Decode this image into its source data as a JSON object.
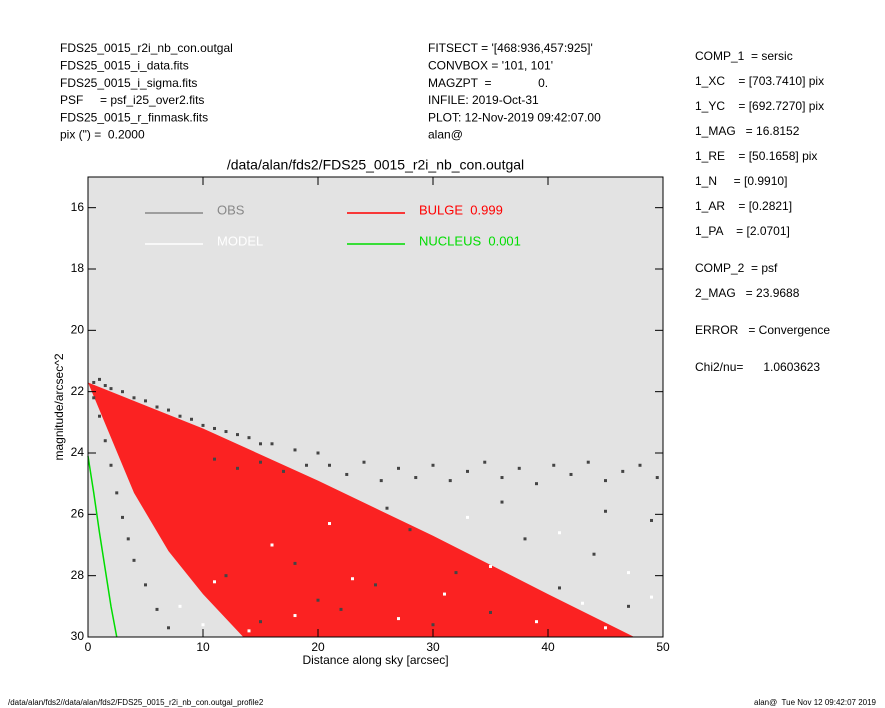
{
  "header": {
    "left": [
      "FDS25_0015_r2i_nb_con.outgal",
      "FDS25_0015_i_data.fits",
      "FDS25_0015_i_sigma.fits",
      "PSF     = psf_i25_over2.fits",
      "FDS25_0015_r_finmask.fits",
      "pix (\") =  0.2000"
    ],
    "middle": [
      "FITSECT = '[468:936,457:925]'",
      "CONVBOX = '101, 101'",
      "MAGZPT  =              0.",
      "INFILE: 2019-Oct-31",
      "PLOT: 12-Nov-2019 09:42:07.00",
      "alan@"
    ],
    "right": [
      "COMP_1  = sersic",
      "1_XC    = [703.7410] pix",
      "1_YC    = [692.7270] pix",
      "1_MAG   = 16.8152",
      "1_RE    = [50.1658] pix",
      "1_N     = [0.9910]",
      "1_AR    = [0.2821]",
      "1_PA    = [2.0701]",
      "COMP_2  = psf",
      "2_MAG   = 23.9688",
      "ERROR   = Convergence",
      "Chi2/nu=      1.0603623"
    ]
  },
  "footer": {
    "left": "/data/alan/fds2//data/alan/fds2/FDS25_0015_r2i_nb_con.outgal_profile2",
    "right": "alan@  Tue Nov 12 09:42:07 2019"
  },
  "chart_data": {
    "type": "scatter",
    "title": "/data/alan/fds2/FDS25_0015_r2i_nb_con.outgal",
    "x_label": "Distance along sky [arcsec]",
    "y_label": "magnitude/arcsec^2",
    "xlim": [
      0,
      50
    ],
    "ylim": [
      30,
      15
    ],
    "xticks": [
      0,
      10,
      20,
      30,
      40,
      50
    ],
    "yticks": [
      16,
      18,
      20,
      22,
      24,
      26,
      28,
      30
    ],
    "background": "#e3e3e3",
    "series": [
      {
        "name": "OBS",
        "color": "#444444",
        "legend_color": "#888888",
        "type": "scatter",
        "x": [
          0.5,
          1,
          1.5,
          2,
          3,
          4,
          5,
          6,
          7,
          8,
          9,
          10,
          11,
          12,
          13,
          14,
          15,
          16,
          18,
          20,
          21,
          22.5,
          24,
          25.5,
          27,
          28.5,
          30,
          31.5,
          33,
          34.5,
          36,
          37.5,
          39,
          40.5,
          42,
          43.5,
          45,
          46.5,
          48,
          49.5,
          11,
          13,
          15,
          17,
          19,
          0.5,
          1,
          1.5,
          2,
          2.5,
          3,
          3.5,
          4,
          5,
          6,
          7,
          12,
          15,
          18,
          22,
          25,
          28,
          32,
          35,
          38,
          41,
          44,
          47,
          49,
          30,
          20,
          26,
          36,
          45
        ],
        "values": [
          21.7,
          21.6,
          21.8,
          21.9,
          22.0,
          22.2,
          22.3,
          22.5,
          22.6,
          22.8,
          22.9,
          23.1,
          23.2,
          23.3,
          23.4,
          23.5,
          23.7,
          23.7,
          23.9,
          24.0,
          24.4,
          24.7,
          24.3,
          24.9,
          24.5,
          24.8,
          24.4,
          24.9,
          24.6,
          24.3,
          24.8,
          24.5,
          25.0,
          24.4,
          24.7,
          24.3,
          24.9,
          24.6,
          24.4,
          24.8,
          24.2,
          24.5,
          24.3,
          24.6,
          24.4,
          22.2,
          22.8,
          23.6,
          24.4,
          25.3,
          26.1,
          26.8,
          27.5,
          28.3,
          29.1,
          29.7,
          28.0,
          29.5,
          27.6,
          29.1,
          28.3,
          26.5,
          27.9,
          29.2,
          26.8,
          28.4,
          27.3,
          29.0,
          26.2,
          29.6,
          28.8,
          25.8,
          25.6,
          25.9
        ]
      },
      {
        "name": "MODEL",
        "color": "#ffffff",
        "type": "scatter",
        "x": [
          14,
          18,
          23,
          27,
          31,
          35,
          39,
          43,
          47,
          49,
          10,
          11,
          16,
          21,
          33,
          41,
          45,
          8
        ],
        "values": [
          29.8,
          29.3,
          28.1,
          29.4,
          28.6,
          27.7,
          29.5,
          28.9,
          27.9,
          28.7,
          29.6,
          28.2,
          27.0,
          26.3,
          26.1,
          26.6,
          29.7,
          29.0
        ]
      },
      {
        "name": "BULGE  0.999",
        "color": "#ff0000",
        "type": "area",
        "x": [
          0,
          10,
          20,
          30,
          40,
          47.5,
          13.5,
          10,
          7,
          4,
          0
        ],
        "values": [
          21.7,
          23.2,
          24.9,
          26.7,
          28.6,
          30,
          30,
          28.6,
          27.2,
          25.3,
          21.7
        ]
      },
      {
        "name": "NUCLEUS  0.001",
        "color": "#00dd00",
        "type": "line",
        "x": [
          0,
          0.5,
          1,
          1.5,
          2,
          2.5
        ],
        "values": [
          24.1,
          25.3,
          26.6,
          27.8,
          29.0,
          30.0
        ]
      }
    ]
  }
}
